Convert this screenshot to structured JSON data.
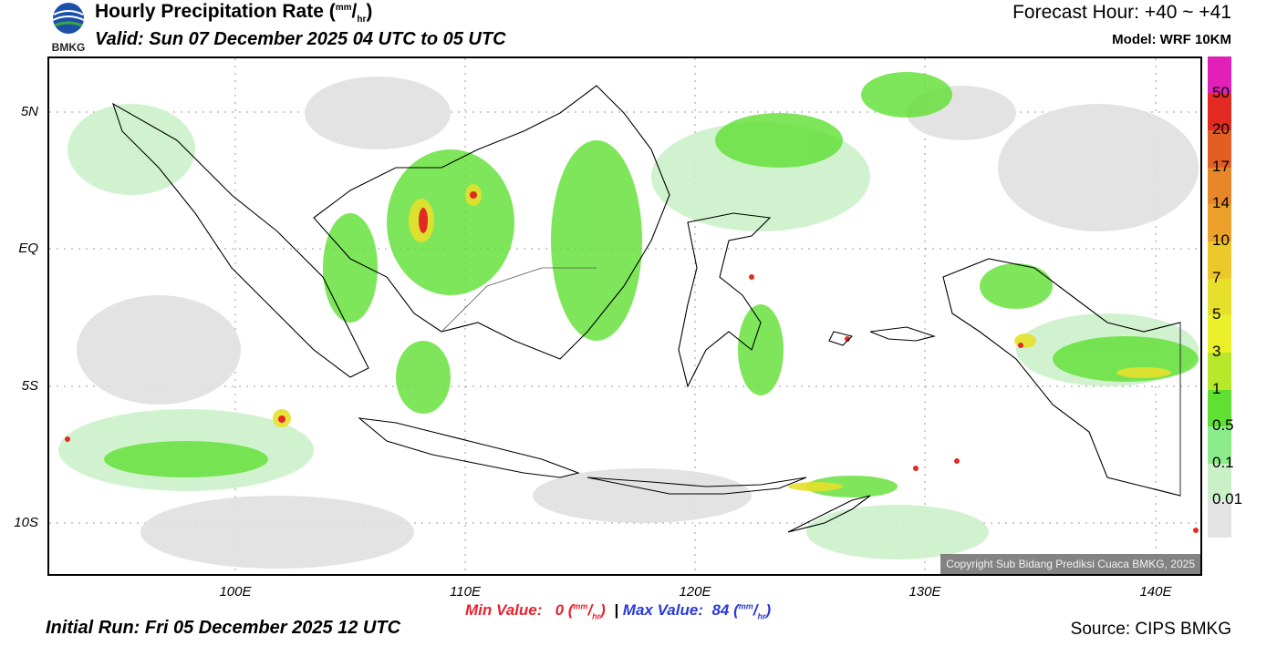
{
  "header": {
    "title_text": "Hourly Precipitation Rate (",
    "title_unit_num": "mm",
    "title_unit_sep": "/",
    "title_unit_den": "hr",
    "title_close": ")",
    "valid": "Valid: Sun 07 December 2025 04 UTC to 05 UTC",
    "forecast_hour": "Forecast Hour: +40 ~ +41",
    "model": "Model: WRF 10KM",
    "logo_text": "BMKG"
  },
  "map": {
    "lat_labels": [
      "5N",
      "EQ",
      "5S",
      "10S"
    ],
    "lon_labels": [
      "100E",
      "110E",
      "120E",
      "130E",
      "140E"
    ],
    "copyright": "Copyright Sub Bidang Prediksi Cuaca BMKG, 2025"
  },
  "stats": {
    "min_label": "Min Value:",
    "min_value": "0",
    "max_label": "Max Value:",
    "max_value": "84",
    "unit_num": "mm",
    "unit_den": "hr",
    "divider": "|"
  },
  "footer": {
    "initial_run": "Initial Run: Fri 05 December 2025 12 UTC",
    "source": "Source: CIPS BMKG"
  },
  "colorbar": {
    "labels": [
      "50",
      "20",
      "17",
      "14",
      "10",
      "7",
      "5",
      "3",
      "1",
      "0.5",
      "0.1",
      "0.01"
    ],
    "colors": [
      "#e21fb8",
      "#e22a22",
      "#e25e22",
      "#e8862a",
      "#eca22a",
      "#ecc82a",
      "#e6e02a",
      "#ecf02a",
      "#b8e82a",
      "#5fe032",
      "#8ceb8a",
      "#c9f0c7",
      "#e3e3e3"
    ]
  }
}
